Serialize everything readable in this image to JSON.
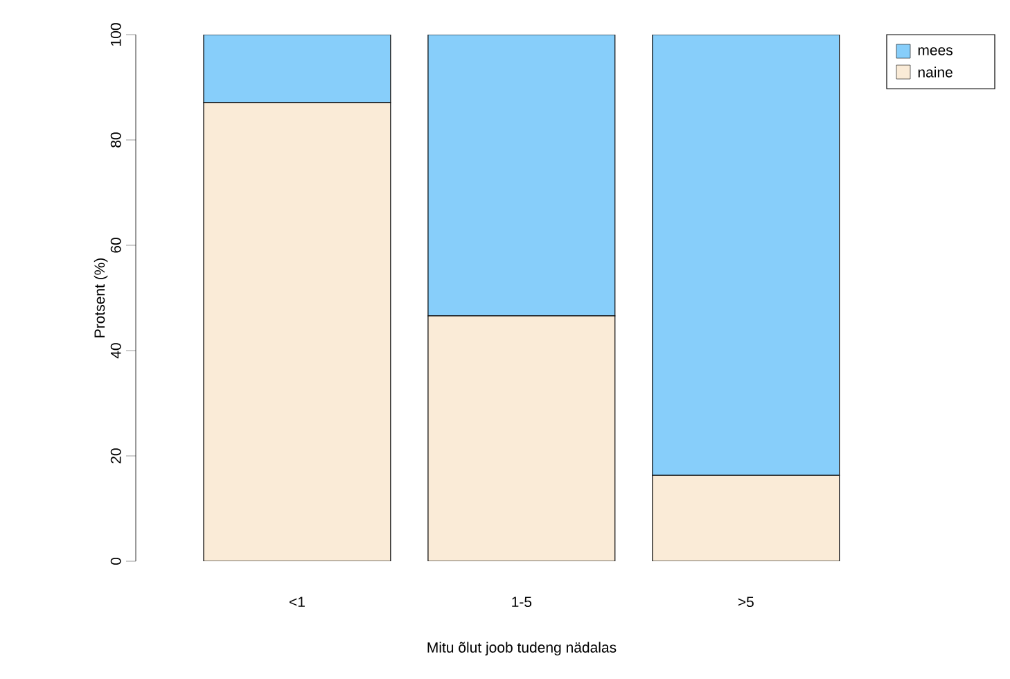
{
  "chart_data": {
    "type": "bar",
    "xlabel": "Mitu õlut joob tudeng nädalas",
    "ylabel": "Protsent (%)",
    "categories": [
      "<1",
      "1-5",
      ">5"
    ],
    "series": [
      {
        "name": "naine",
        "color": "#faebd7",
        "values": [
          87.1,
          46.6,
          16.3
        ]
      },
      {
        "name": "mees",
        "color": "#87cefa",
        "values": [
          12.9,
          53.4,
          83.7
        ]
      }
    ],
    "stacked": true,
    "ylim": [
      0,
      100
    ],
    "yticks": [
      0,
      20,
      40,
      60,
      80,
      100
    ],
    "legend": "top right"
  }
}
